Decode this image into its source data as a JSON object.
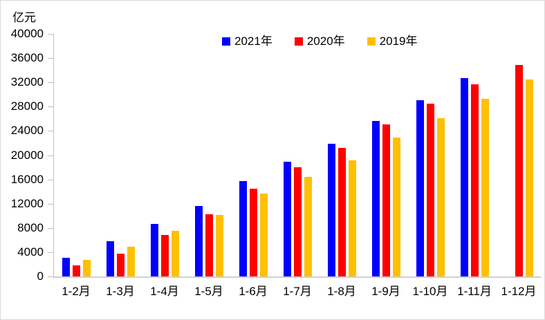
{
  "chart_data": {
    "type": "bar",
    "title": "",
    "unit_label": "亿元",
    "categories": [
      "1-2月",
      "1-3月",
      "1-4月",
      "1-5月",
      "1-6月",
      "1-7月",
      "1-8月",
      "1-9月",
      "1-10月",
      "1-11月",
      "1-12月"
    ],
    "series": [
      {
        "name": "2021年",
        "color": "#0000FF",
        "values": [
          3050,
          5800,
          8700,
          11600,
          15700,
          18900,
          21900,
          25650,
          29100,
          32700,
          null
        ]
      },
      {
        "name": "2020年",
        "color": "#FF0000",
        "values": [
          1850,
          3750,
          6850,
          10250,
          14450,
          18000,
          21250,
          25050,
          28450,
          31700,
          34850
        ]
      },
      {
        "name": "2019年",
        "color": "#FFC000",
        "values": [
          2750,
          4900,
          7500,
          10100,
          13650,
          16450,
          19200,
          22900,
          26100,
          29300,
          32450
        ]
      }
    ],
    "ylim": [
      0,
      40000
    ],
    "ytick_step": 4000,
    "legend_position": "top",
    "grid": false,
    "axis_color": "#BFBFBF"
  }
}
